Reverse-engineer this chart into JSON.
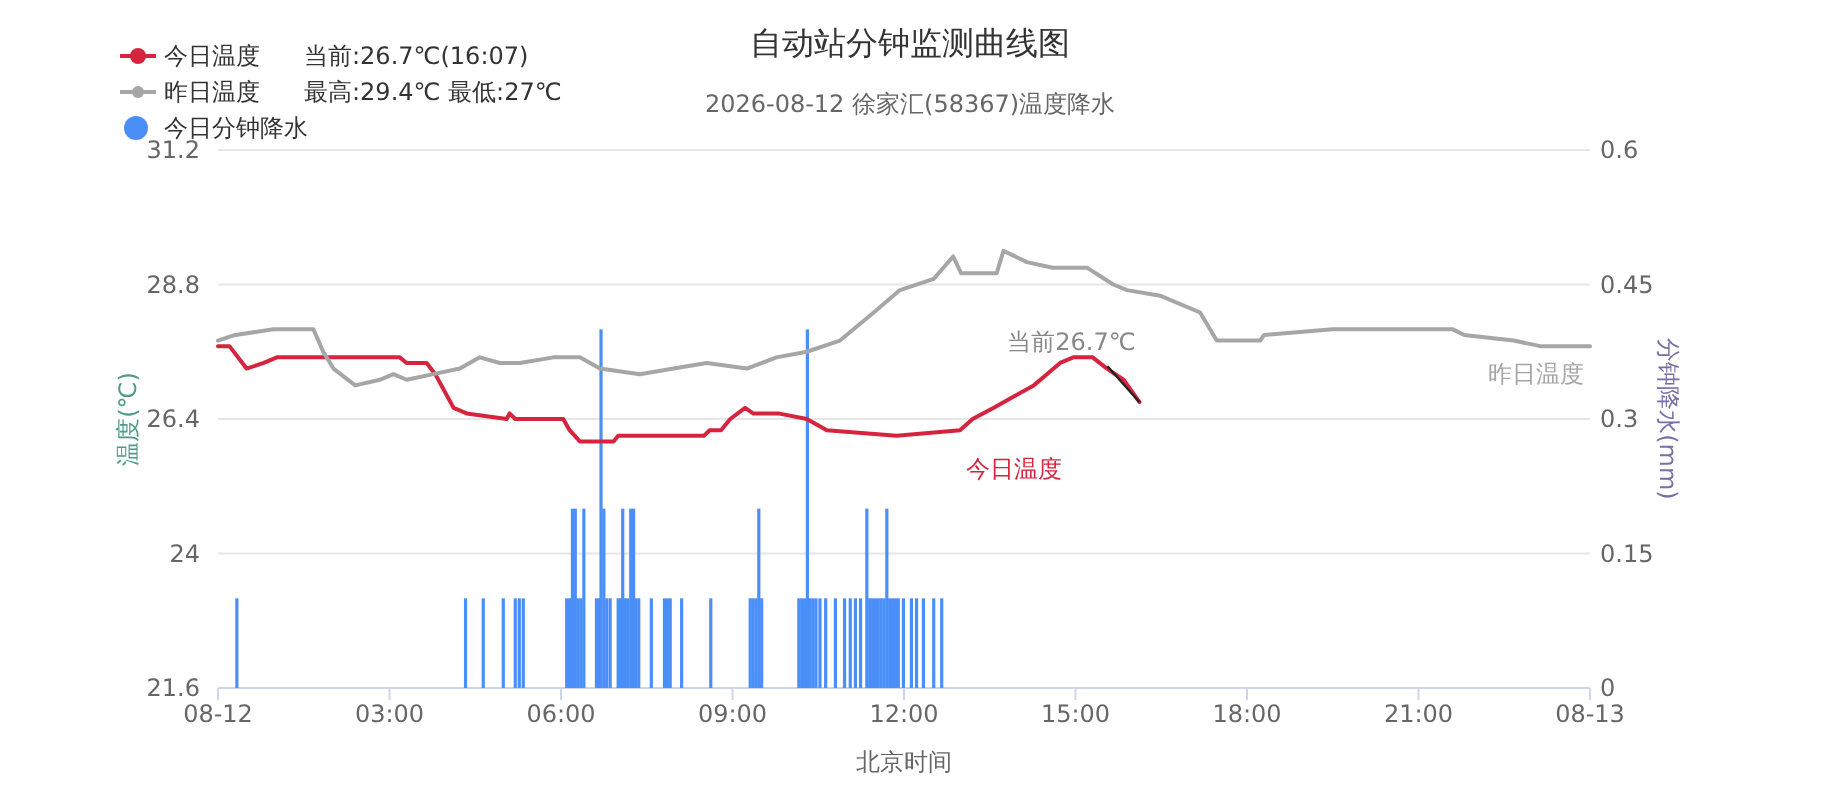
{
  "chart_data": {
    "type": "line",
    "title": "自动站分钟监测曲线图",
    "subtitle": "2026-08-12 徐家汇(58367)温度降水",
    "xlabel": "北京时间",
    "ylabel": "温度(℃)",
    "y2label": "分钟降水(mm)",
    "xlim": [
      0,
      24
    ],
    "xticks": [
      {
        "value": 0,
        "label": "08-12"
      },
      {
        "value": 3,
        "label": "03:00"
      },
      {
        "value": 6,
        "label": "06:00"
      },
      {
        "value": 9,
        "label": "09:00"
      },
      {
        "value": 12,
        "label": "12:00"
      },
      {
        "value": 15,
        "label": "15:00"
      },
      {
        "value": 18,
        "label": "18:00"
      },
      {
        "value": 21,
        "label": "21:00"
      },
      {
        "value": 24,
        "label": "08-13"
      }
    ],
    "ylim": [
      21.6,
      31.2
    ],
    "yticks": [
      21.6,
      24,
      26.4,
      28.8,
      31.2
    ],
    "y2lim": [
      0,
      0.6
    ],
    "y2ticks": [
      0,
      0.15,
      0.3,
      0.45,
      0.6
    ],
    "grid": "y",
    "legend": "top left",
    "annotations": [
      "当前:26.7℃(16:07)",
      "最高:29.4℃ 最低:27℃",
      {
        "text": "当前26.7℃",
        "x": 16.12,
        "y": 26.7
      }
    ],
    "series": [
      {
        "name": "今日温度",
        "color": "#d6243f",
        "x": [
          0,
          0.2,
          0.5,
          0.8,
          1.03,
          3.18,
          3.3,
          3.65,
          3.8,
          4.12,
          4.35,
          5.05,
          5.1,
          5.2,
          6.04,
          6.15,
          6.33,
          6.92,
          7.0,
          8.5,
          8.6,
          8.8,
          8.96,
          9.22,
          9.36,
          9.8,
          10.3,
          10.65,
          11.87,
          12.98,
          13.2,
          13.57,
          13.92,
          14.27,
          14.5,
          14.73,
          14.96,
          15.3,
          15.55,
          15.84,
          16.12
        ],
        "values": [
          27.7,
          27.7,
          27.3,
          27.4,
          27.5,
          27.5,
          27.4,
          27.4,
          27.2,
          26.6,
          26.5,
          26.4,
          26.5,
          26.4,
          26.4,
          26.2,
          26.0,
          26.0,
          26.1,
          26.1,
          26.2,
          26.2,
          26.4,
          26.6,
          26.5,
          26.5,
          26.4,
          26.2,
          26.1,
          26.2,
          26.4,
          26.6,
          26.8,
          27.0,
          27.2,
          27.4,
          27.5,
          27.5,
          27.3,
          27.1,
          26.7
        ]
      },
      {
        "name": "昨日温度",
        "color": "#a6a6a6",
        "x": [
          0,
          0.3,
          0.97,
          1.67,
          1.84,
          2.02,
          2.4,
          2.83,
          3.07,
          3.3,
          3.77,
          4.23,
          4.58,
          4.93,
          5.28,
          5.87,
          6.33,
          6.68,
          7.38,
          7.97,
          8.55,
          9.25,
          9.77,
          10.3,
          10.88,
          11.47,
          11.93,
          12.52,
          12.86,
          13.0,
          13.62,
          13.74,
          14.15,
          14.6,
          15.2,
          15.66,
          15.9,
          16.48,
          17.18,
          17.47,
          18.23,
          18.3,
          19.5,
          21.6,
          21.8,
          22.66,
          23.13,
          24
        ],
        "values": [
          27.8,
          27.9,
          28.0,
          28.0,
          27.6,
          27.3,
          27.0,
          27.1,
          27.2,
          27.1,
          27.2,
          27.3,
          27.5,
          27.4,
          27.4,
          27.5,
          27.5,
          27.3,
          27.2,
          27.3,
          27.4,
          27.3,
          27.5,
          27.6,
          27.8,
          28.3,
          28.7,
          28.9,
          29.3,
          29.0,
          29.0,
          29.4,
          29.2,
          29.1,
          29.1,
          28.8,
          28.7,
          28.6,
          28.3,
          27.8,
          27.8,
          27.9,
          28.0,
          28.0,
          27.9,
          27.8,
          27.7,
          27.7
        ]
      },
      {
        "name": "今日分钟降水",
        "type": "bar",
        "axis": "y2",
        "color": "#4a8ff8",
        "x": [
          0.33,
          4.33,
          4.64,
          4.99,
          5.2,
          5.27,
          5.34,
          6.1,
          6.15,
          6.2,
          6.25,
          6.3,
          6.35,
          6.4,
          6.62,
          6.66,
          6.7,
          6.75,
          6.8,
          6.86,
          7.0,
          7.04,
          7.08,
          7.13,
          7.17,
          7.22,
          7.27,
          7.31,
          7.36,
          7.58,
          7.81,
          7.86,
          7.91,
          8.11,
          8.62,
          9.31,
          9.36,
          9.41,
          9.46,
          9.51,
          10.16,
          10.21,
          10.26,
          10.31,
          10.36,
          10.41,
          10.46,
          10.53,
          10.63,
          10.8,
          10.96,
          11.06,
          11.15,
          11.24,
          11.35,
          11.4,
          11.45,
          11.5,
          11.55,
          11.6,
          11.65,
          11.7,
          11.75,
          11.8,
          11.85,
          11.9,
          11.99,
          12.13,
          12.22,
          12.34,
          12.52,
          12.66
        ],
        "values": [
          0.1,
          0.1,
          0.1,
          0.1,
          0.1,
          0.1,
          0.1,
          0.1,
          0.1,
          0.2,
          0.2,
          0.1,
          0.1,
          0.2,
          0.1,
          0.1,
          0.4,
          0.2,
          0.1,
          0.1,
          0.1,
          0.1,
          0.2,
          0.1,
          0.1,
          0.2,
          0.2,
          0.1,
          0.1,
          0.1,
          0.1,
          0.1,
          0.1,
          0.1,
          0.1,
          0.1,
          0.1,
          0.1,
          0.2,
          0.1,
          0.1,
          0.1,
          0.1,
          0.4,
          0.1,
          0.1,
          0.1,
          0.1,
          0.1,
          0.1,
          0.1,
          0.1,
          0.1,
          0.1,
          0.2,
          0.1,
          0.1,
          0.1,
          0.1,
          0.1,
          0.1,
          0.2,
          0.1,
          0.1,
          0.1,
          0.1,
          0.1,
          0.1,
          0.1,
          0.1,
          0.1,
          0.1
        ]
      }
    ]
  }
}
